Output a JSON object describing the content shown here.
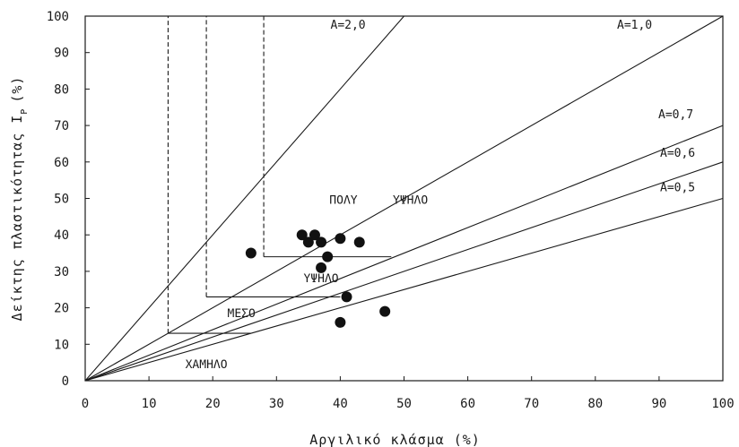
{
  "chart_data": {
    "type": "scatter",
    "xlabel": "Αργιλικό κλάσμα (%)",
    "ylabel": "Δείκτης πλαστικότητας I",
    "ylabel_sub": "P",
    "ylabel_unit": "(%)",
    "xlim": [
      0,
      100
    ],
    "ylim": [
      0,
      100
    ],
    "x_ticks": [
      0,
      10,
      20,
      30,
      40,
      50,
      60,
      70,
      80,
      90,
      100
    ],
    "y_ticks": [
      0,
      10,
      20,
      30,
      40,
      50,
      60,
      70,
      80,
      90,
      100
    ],
    "grid": false,
    "series": [
      {
        "points": [
          {
            "x": 26,
            "y": 35
          },
          {
            "x": 34,
            "y": 40
          },
          {
            "x": 35,
            "y": 38
          },
          {
            "x": 36,
            "y": 40
          },
          {
            "x": 37,
            "y": 38
          },
          {
            "x": 37,
            "y": 31
          },
          {
            "x": 38,
            "y": 34
          },
          {
            "x": 40,
            "y": 39
          },
          {
            "x": 43,
            "y": 38
          },
          {
            "x": 41,
            "y": 23
          },
          {
            "x": 40,
            "y": 16
          },
          {
            "x": 47,
            "y": 19
          }
        ]
      }
    ],
    "activity_lines": [
      {
        "label": "A=2,0",
        "slope": 2.0
      },
      {
        "label": "A=1,0",
        "slope": 1.0
      },
      {
        "label": "A=0,7",
        "slope": 0.7
      },
      {
        "label": "A=0,6",
        "slope": 0.6
      },
      {
        "label": "A=0,5",
        "slope": 0.5
      }
    ],
    "zones": [
      {
        "label": "ΠΟΛΥ"
      },
      {
        "label": "ΥΨΗΛΟ"
      },
      {
        "label": "ΥΨΗΛΟ"
      },
      {
        "label": "ΜΕΣΟ"
      },
      {
        "label": "ΧΑΜΗΛΟ"
      }
    ],
    "zone_boundaries": {
      "solid_polylines": [
        [
          [
            13,
            13
          ],
          [
            26,
            13
          ]
        ],
        [
          [
            19,
            23
          ],
          [
            40,
            23
          ]
        ],
        [
          [
            28,
            34
          ],
          [
            48,
            34
          ]
        ]
      ],
      "dashed_verticals": [
        {
          "x": 13,
          "y_from": 13,
          "y_to": 100
        },
        {
          "x": 19,
          "y_from": 23,
          "y_to": 100
        },
        {
          "x": 28,
          "y_from": 34,
          "y_to": 100
        }
      ]
    }
  }
}
